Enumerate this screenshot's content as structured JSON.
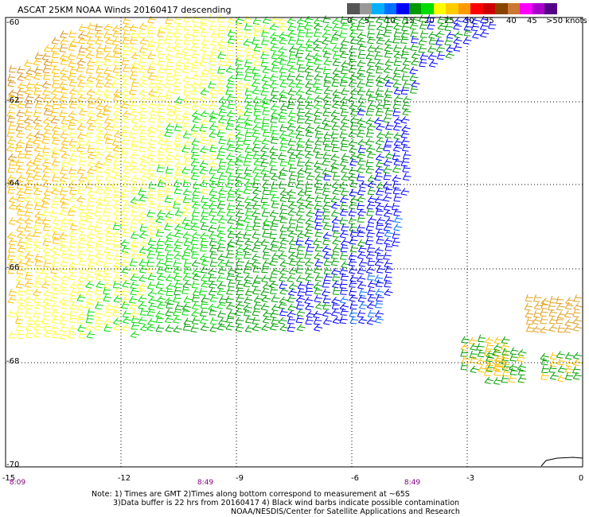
{
  "title": "ASCAT 25KM NOAA Winds 20160417 descending",
  "legend": {
    "labels": [
      "0",
      "5",
      "10",
      "15",
      "20",
      "25",
      "30",
      "35",
      "40",
      "45",
      ">50 knots"
    ],
    "colors": [
      "#555555",
      "#999999",
      "#00b0ff",
      "#0070ff",
      "#0000ff",
      "#009900",
      "#00dd00",
      "#ffff00",
      "#ffcc00",
      "#ff9900",
      "#ff0000",
      "#cc0000",
      "#884400",
      "#cc7733",
      "#ff00ff",
      "#aa00cc",
      "#550088"
    ]
  },
  "axes": {
    "lat_labels": [
      "-60",
      "-62",
      "-64",
      "-66",
      "-68",
      "-70"
    ],
    "lon_labels": [
      "-15",
      "-12",
      "-9",
      "-6",
      "-3",
      "0"
    ],
    "time_labels": [
      "8:09",
      "8:49",
      "8:49"
    ]
  },
  "notes": {
    "line1": "Note: 1) Times are GMT 2)Times along bottom correspond to measurement at ~65S",
    "line2": "3)Data buffer is 22 hrs from 20160417 4) Black wind barbs indicate possible contamination",
    "line3": "NOAA/NESDIS/Center for Satellite Applications and Research"
  },
  "colors": {
    "grid": "#000000",
    "map_frame": "#000000",
    "coast": "#000000"
  }
}
